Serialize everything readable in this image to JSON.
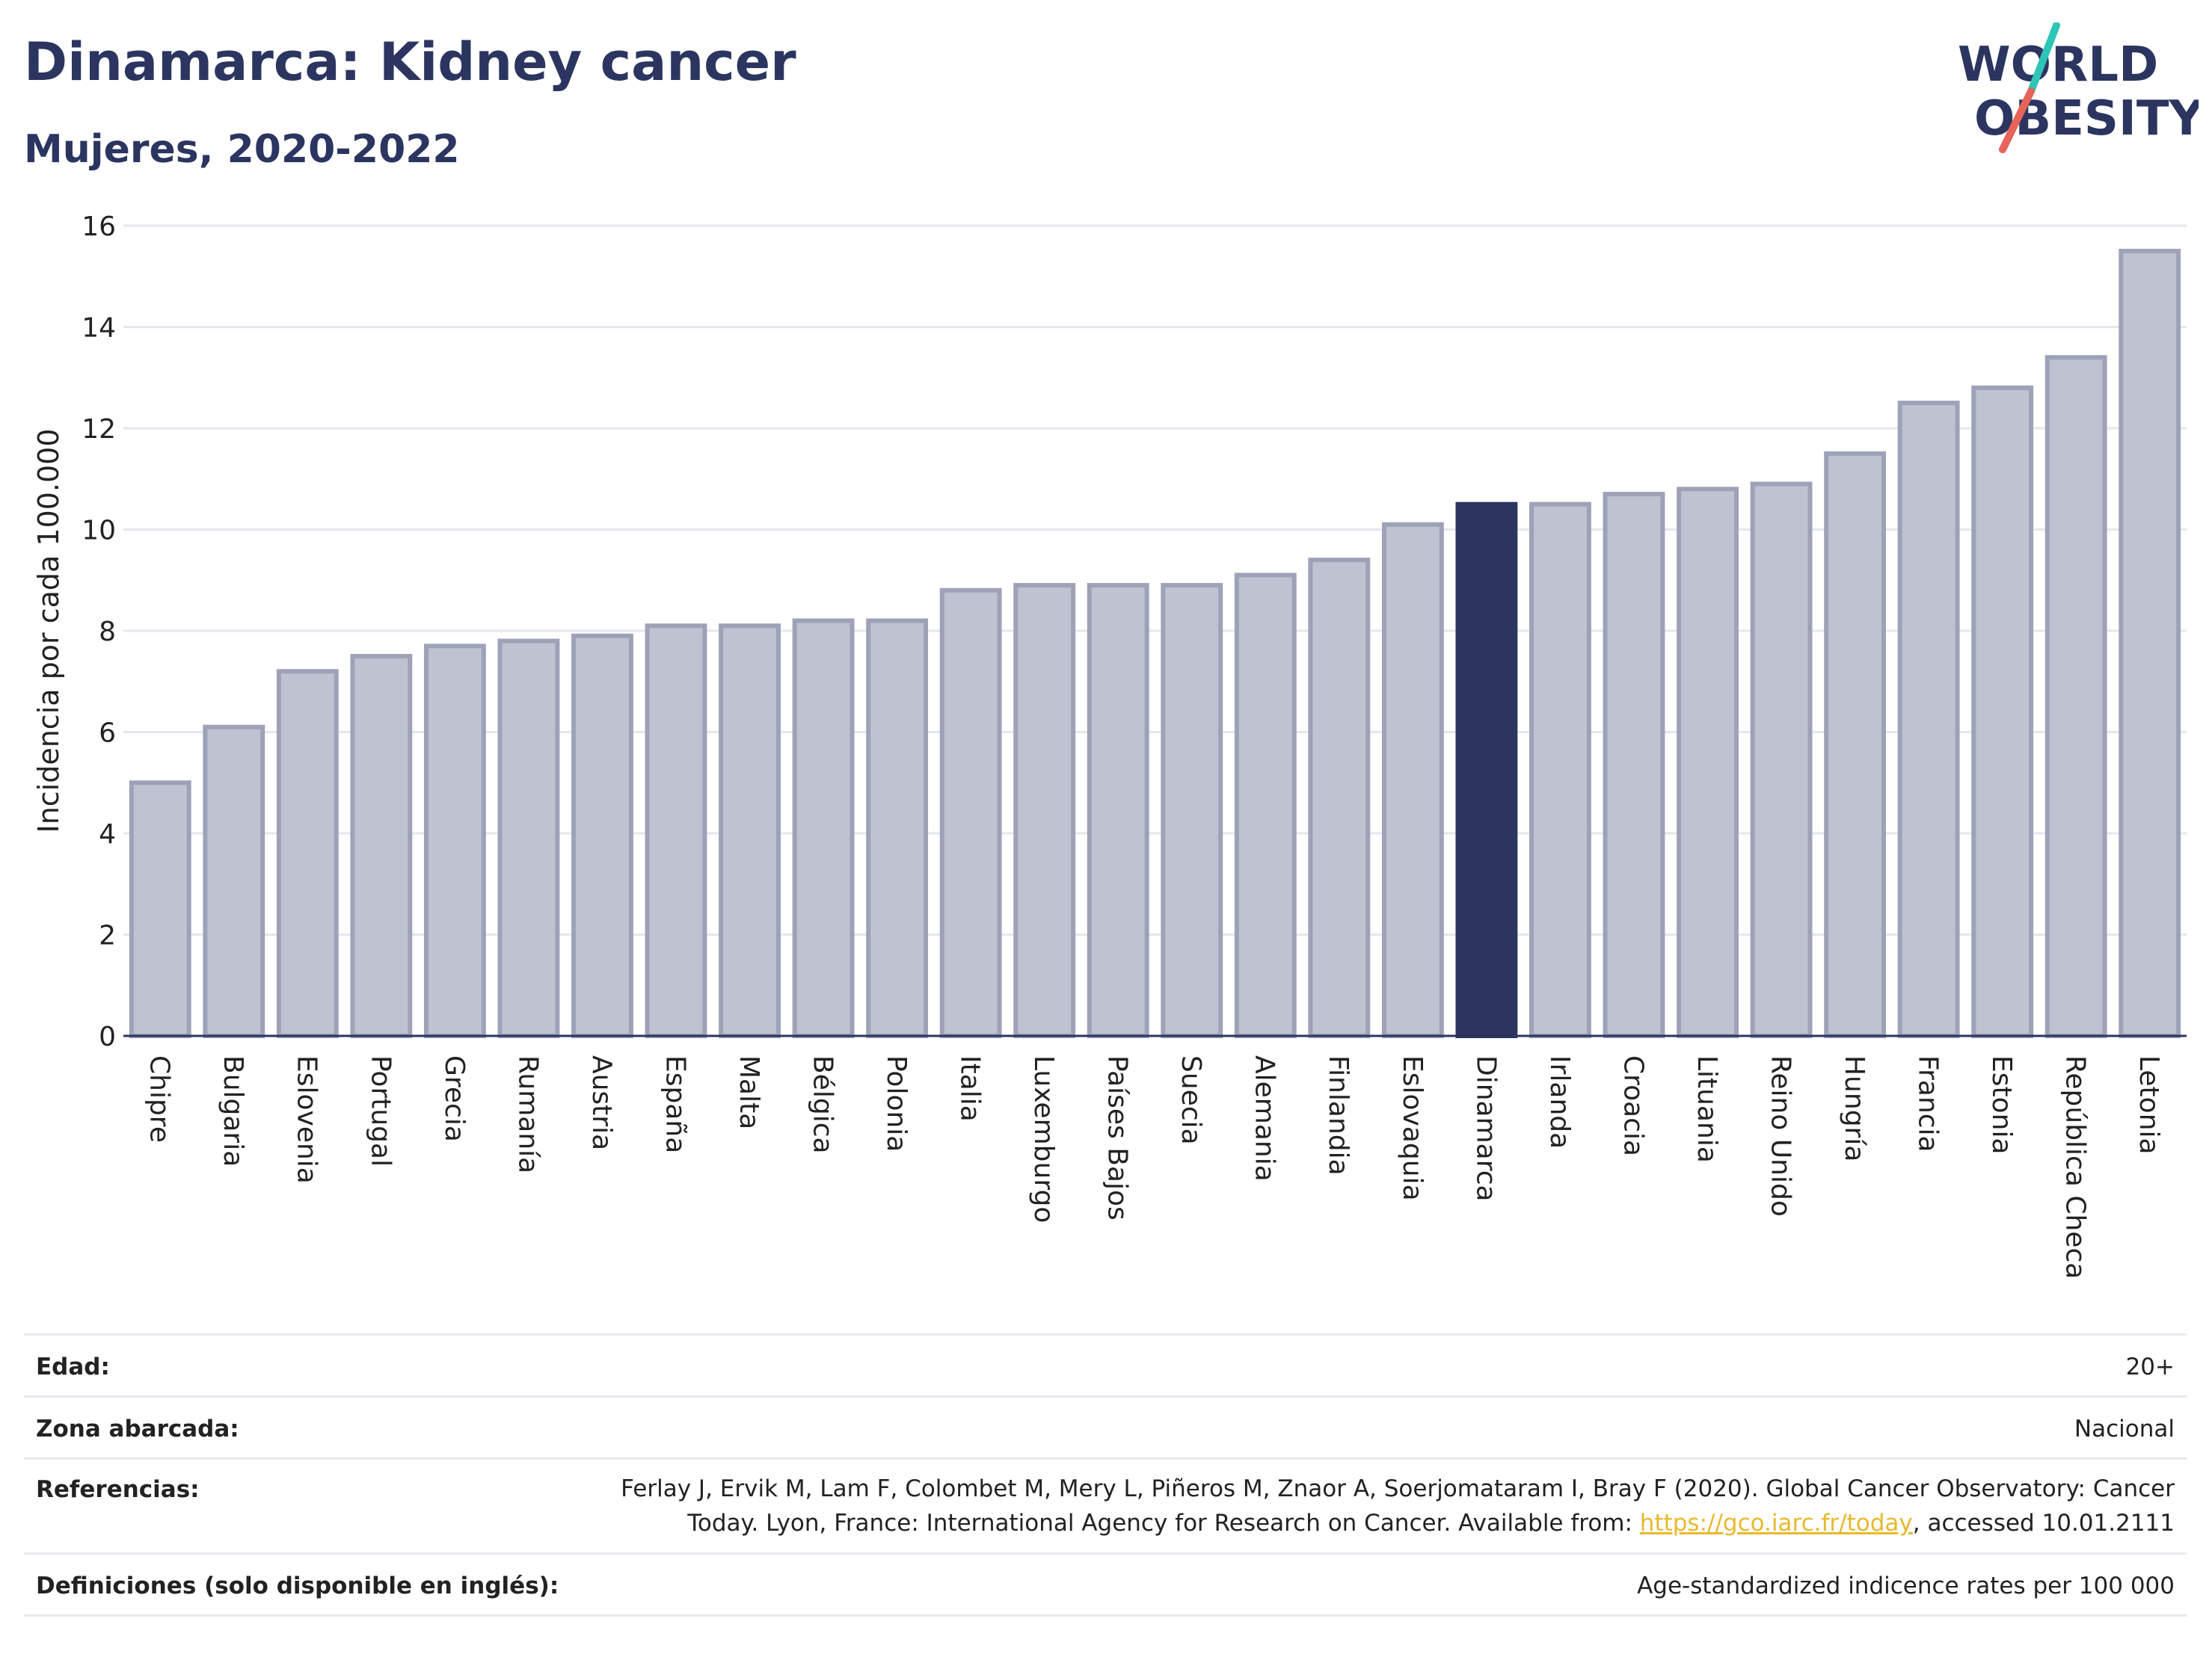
{
  "header": {
    "title": "Dinamarca: Kidney cancer",
    "subtitle": "Mujeres, 2020-2022"
  },
  "logo": {
    "line1": "WORLD",
    "line2": "OBESITY",
    "colors": {
      "text": "#2b3560",
      "slash_top": "#2ec4b6",
      "slash_bottom": "#e8635a"
    }
  },
  "chart_data": {
    "type": "bar",
    "title": "",
    "xlabel": "",
    "ylabel": "Incidencia por cada 100.000",
    "ylim": [
      0,
      16
    ],
    "yticks": [
      0,
      2,
      4,
      6,
      8,
      10,
      12,
      14,
      16
    ],
    "grid": true,
    "highlight": "Dinamarca",
    "colors": {
      "bar": "#bfc2d0",
      "bar_edge": "#9da2b8",
      "highlight": "#2b3560",
      "grid": "#e6e7ee"
    },
    "categories": [
      "Chipre",
      "Bulgaria",
      "Eslovenia",
      "Portugal",
      "Grecia",
      "Rumanía",
      "Austria",
      "España",
      "Malta",
      "Bélgica",
      "Polonia",
      "Italia",
      "Luxemburgo",
      "Países Bajos",
      "Suecia",
      "Alemania",
      "Finlandia",
      "Eslovaquia",
      "Dinamarca",
      "Irlanda",
      "Croacia",
      "Lituania",
      "Reino Unido",
      "Hungría",
      "Francia",
      "Estonia",
      "República Checa",
      "Letonia"
    ],
    "values": [
      5.0,
      6.1,
      7.2,
      7.5,
      7.7,
      7.8,
      7.9,
      8.1,
      8.1,
      8.2,
      8.2,
      8.8,
      8.9,
      8.9,
      8.9,
      9.1,
      9.4,
      10.1,
      10.5,
      10.5,
      10.7,
      10.8,
      10.9,
      11.5,
      12.5,
      12.8,
      13.4,
      15.5
    ]
  },
  "meta": {
    "edad_label": "Edad:",
    "edad_value": "20+",
    "zona_label": "Zona abarcada:",
    "zona_value": "Nacional",
    "ref_label": "Referencias:",
    "ref_line1": "Ferlay J, Ervik M, Lam F, Colombet M, Mery L, Piñeros M, Znaor A, Soerjomataram I, Bray F (2020). Global Cancer Observatory: Cancer",
    "ref_line2_pre": "Today. Lyon, France: International Agency for Research on Cancer. Available from: ",
    "ref_link": "https://gco.iarc.fr/today",
    "ref_line2_post": ", accessed 10.01.2111",
    "def_label": "Definiciones (solo disponible en inglés):",
    "def_value": "Age-standardized indicence rates per 100 000"
  }
}
